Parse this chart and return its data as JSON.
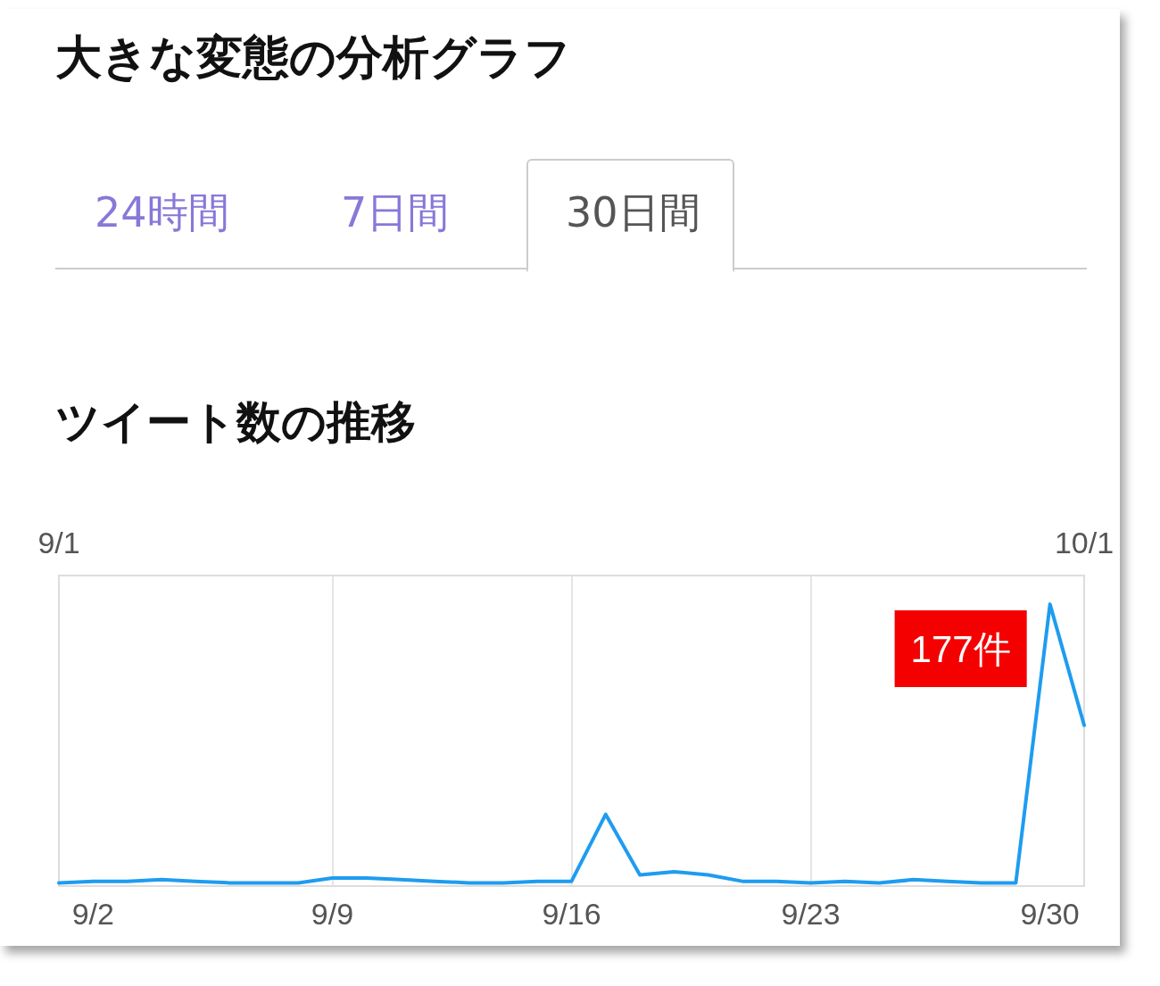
{
  "chart_data": {
    "type": "line",
    "title": "大きな変態の分析グラフ",
    "subtitle": "ツイート数の推移",
    "annotations": [
      "24時間",
      "7日間",
      "30日間"
    ],
    "x": [
      "--09-01",
      "--09-02",
      "--09-03",
      "--09-04",
      "--09-05",
      "--09-06",
      "--09-07",
      "--09-08",
      "--09-09",
      "--09-10",
      "--09-11",
      "--09-12",
      "--09-13",
      "--09-14",
      "--09-15",
      "--09-16",
      "--09-17",
      "--09-18",
      "--09-19",
      "--09-20",
      "--09-21",
      "--09-22",
      "--09-23",
      "--09-24",
      "--09-25",
      "--09-26",
      "--09-27",
      "--09-28",
      "--09-29",
      "--09-30",
      "--10-01"
    ],
    "series": [
      {
        "color": "#1e9cf0",
        "values": [
          2,
          3,
          3,
          4,
          3,
          2,
          2,
          2,
          5,
          5,
          4,
          3,
          2,
          2,
          3,
          3,
          45,
          7,
          9,
          7,
          3,
          3,
          2,
          3,
          2,
          4,
          3,
          2,
          2,
          177,
          101
        ],
        "value_labels": [
          null,
          null,
          null,
          null,
          null,
          null,
          null,
          null,
          null,
          null,
          null,
          null,
          null,
          null,
          null,
          null,
          null,
          null,
          null,
          null,
          null,
          null,
          null,
          null,
          null,
          null,
          null,
          null,
          null,
          "177件",
          null
        ]
      }
    ],
    "xlim": [
      "--09-01",
      "--10-01"
    ],
    "xticks": [
      {
        "value": "--09-02",
        "label": "9/2"
      },
      {
        "value": "--09-09",
        "label": "9/9"
      },
      {
        "value": "--09-16",
        "label": "9/16"
      },
      {
        "value": "--09-23",
        "label": "9/23"
      },
      {
        "value": "--09-30",
        "label": "9/30"
      }
    ],
    "x2lim": [
      "--09-01",
      "--10-01"
    ],
    "x2ticks": [
      {
        "value": "--09-01",
        "label": "9/1"
      },
      {
        "value": "--10-01",
        "label": "10/1"
      }
    ],
    "ylim": [
      0,
      195
    ],
    "tick_labels": "x",
    "grid": "x",
    "marker": "none",
    "line_style": "solid"
  }
}
